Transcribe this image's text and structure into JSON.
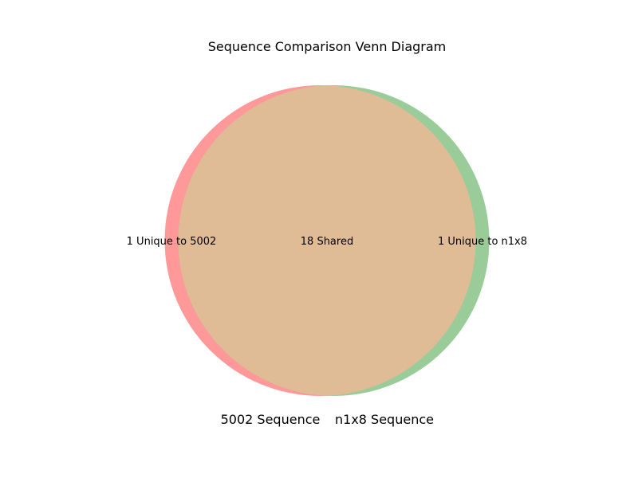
{
  "chart_data": {
    "type": "venn",
    "title": "Sequence Comparison Venn Diagram",
    "sets": [
      {
        "name": "5002 Sequence",
        "unique_count": 1,
        "unique_label": "1 Unique to 5002",
        "color": "#ff9999"
      },
      {
        "name": "n1x8 Sequence",
        "unique_count": 1,
        "unique_label": "1 Unique to n1x8",
        "color": "#99cc99"
      }
    ],
    "intersection": {
      "count": 18,
      "label": "18 Shared",
      "color": "#e0bc96"
    }
  }
}
